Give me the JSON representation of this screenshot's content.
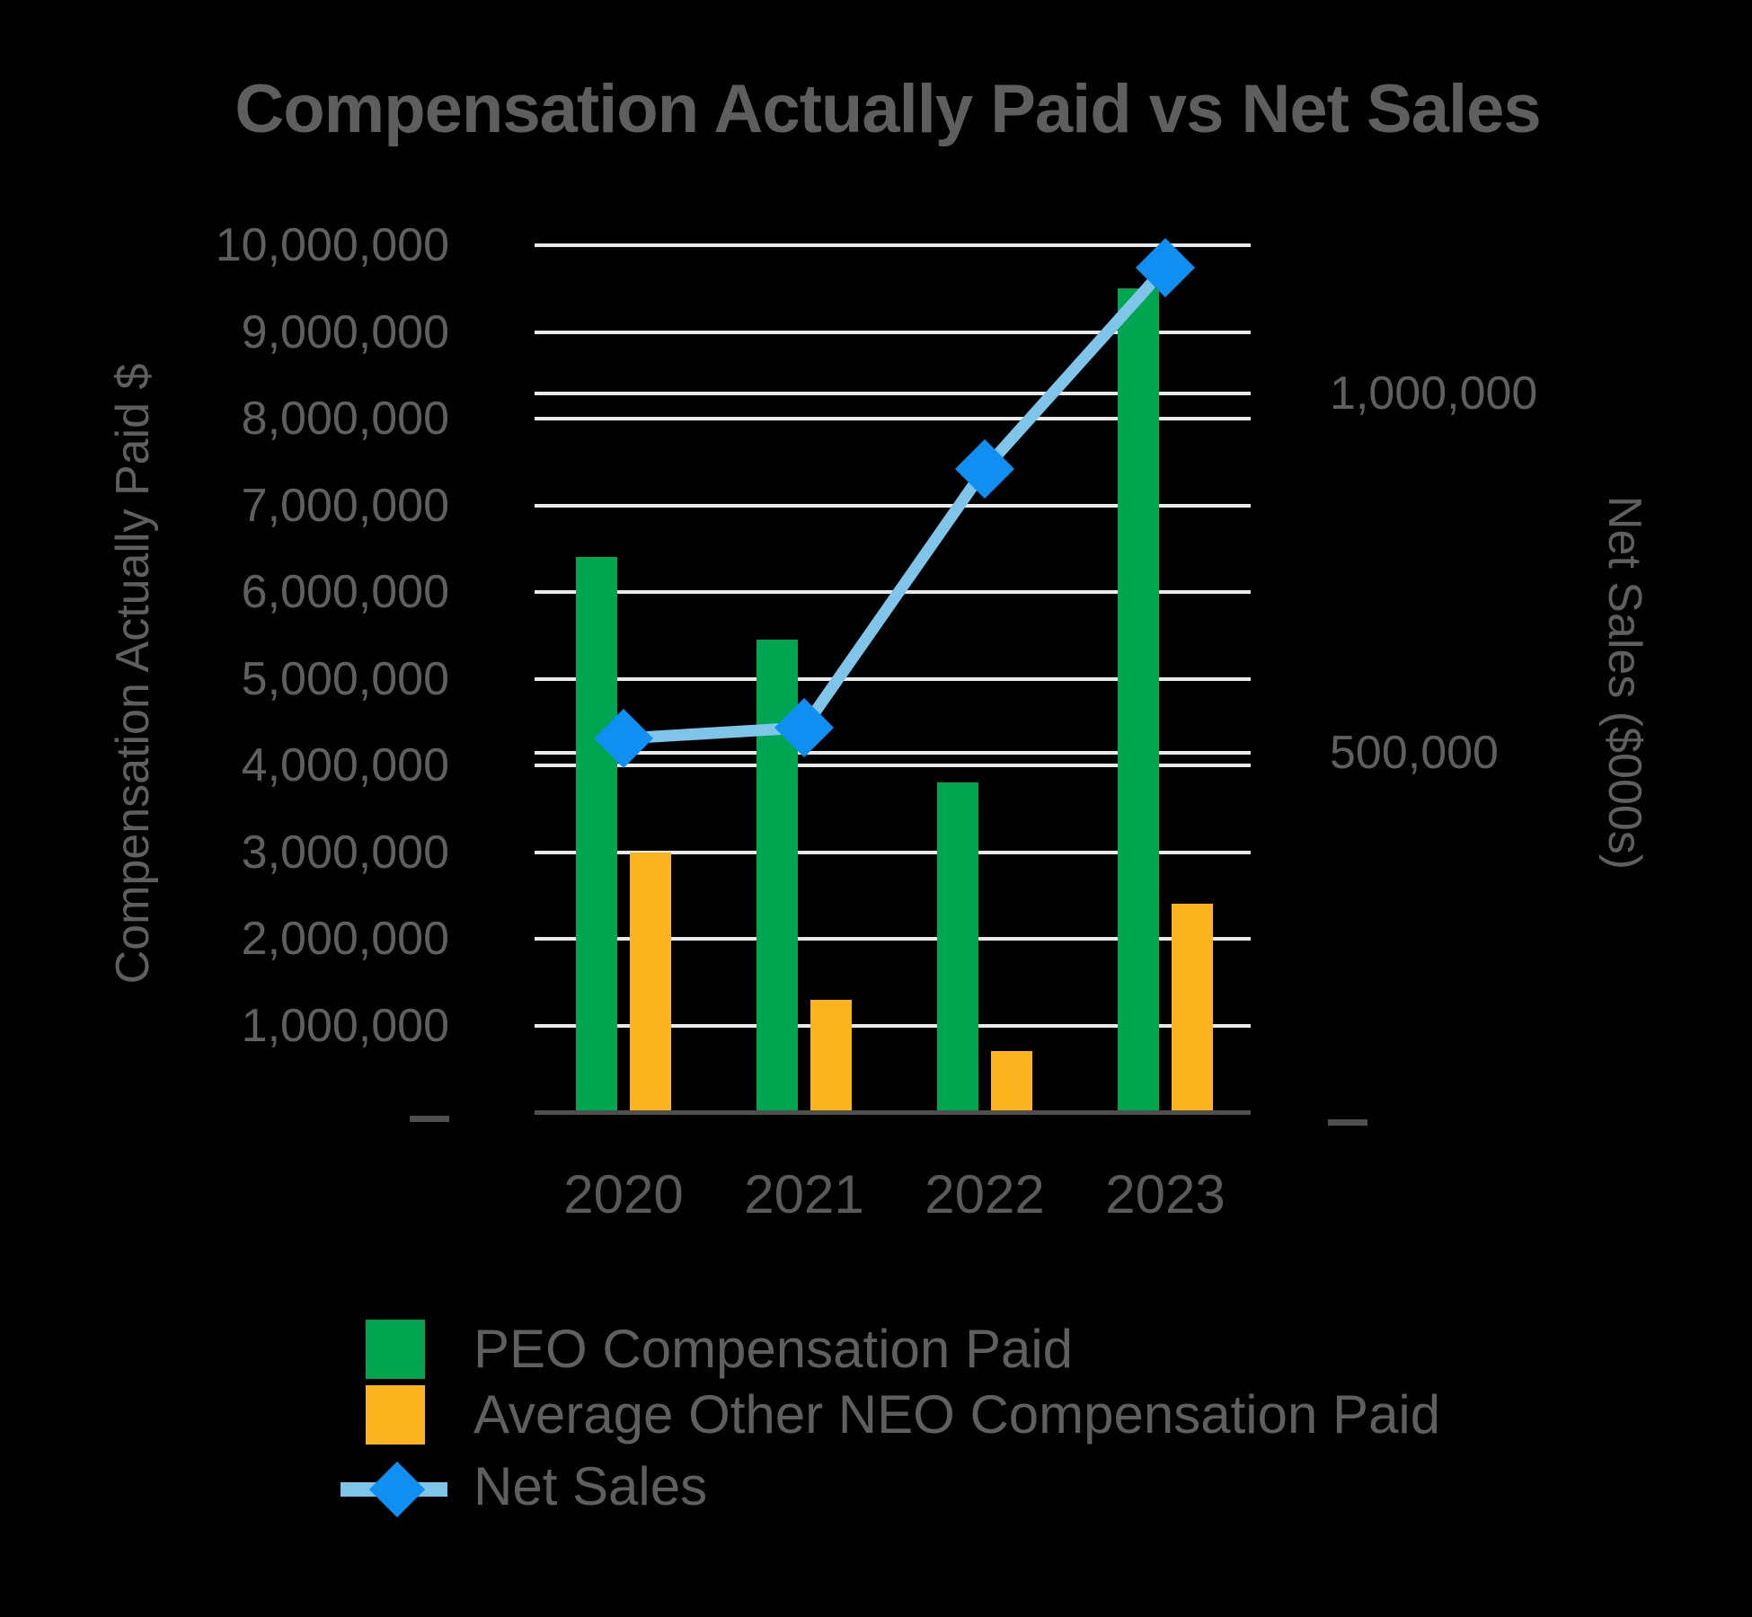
{
  "title": "Compensation Actually Paid vs Net Sales",
  "left_axis": {
    "title": "Compensation Actually Paid $",
    "tick_labels": [
      "1,000,000",
      "2,000,000",
      "3,000,000",
      "4,000,000",
      "5,000,000",
      "6,000,000",
      "7,000,000",
      "8,000,000",
      "9,000,000",
      "10,000,000"
    ],
    "zero_label": "—"
  },
  "right_axis": {
    "title": "Net Sales ($000s)",
    "tick_labels": [
      "500,000",
      "1,000,000"
    ],
    "tick_values": [
      500000,
      1000000
    ],
    "zero_label": "—"
  },
  "x_axis": {
    "labels": [
      "2020",
      "2021",
      "2022",
      "2023"
    ]
  },
  "legend": {
    "items": [
      {
        "label": "PEO Compensation Paid",
        "marker": "green-bar-swatch"
      },
      {
        "label": "Average Other NEO Compensation Paid",
        "marker": "yellow-bar-swatch"
      },
      {
        "label": "Net Sales",
        "marker": "blue-diamond-on-line"
      }
    ]
  },
  "colors": {
    "background": "#000000",
    "peo_bar": "#00A64F",
    "neo_bar": "#FBB41E",
    "net_sales_line": "#7FC5E9",
    "net_sales_marker": "#0F8FF2",
    "gridline": "#E9E9E9",
    "axis_line": "#4F4F4F",
    "text": "#5F5F5F"
  },
  "chart_data": {
    "type": "combo-bar-line",
    "title": "Compensation Actually Paid vs Net Sales",
    "categories": [
      "2020",
      "2021",
      "2022",
      "2023"
    ],
    "series": [
      {
        "name": "PEO Compensation Paid",
        "type": "bar",
        "axis": "left",
        "color": "#00A64F",
        "values": [
          6400000,
          5450000,
          3800000,
          9500000
        ]
      },
      {
        "name": "Average Other NEO Compensation Paid",
        "type": "bar",
        "axis": "left",
        "color": "#FBB41E",
        "values": [
          3000000,
          1300000,
          700000,
          2400000
        ]
      },
      {
        "name": "Net Sales",
        "type": "line",
        "marker": "diamond",
        "axis": "right",
        "color": "#0F8FF2",
        "values": [
          520000,
          535000,
          895000,
          1175000
        ]
      }
    ],
    "left_ylabel": "Compensation Actually Paid $",
    "left_ylim": [
      0,
      10000000
    ],
    "left_tick_step": 1000000,
    "right_ylabel": "Net Sales ($000s)",
    "right_ylim": [
      0,
      1250000
    ],
    "right_ticks": [
      500000,
      1000000
    ],
    "legend_position": "bottom-left",
    "grid": "horizontal gridlines for both axes, white on black"
  }
}
